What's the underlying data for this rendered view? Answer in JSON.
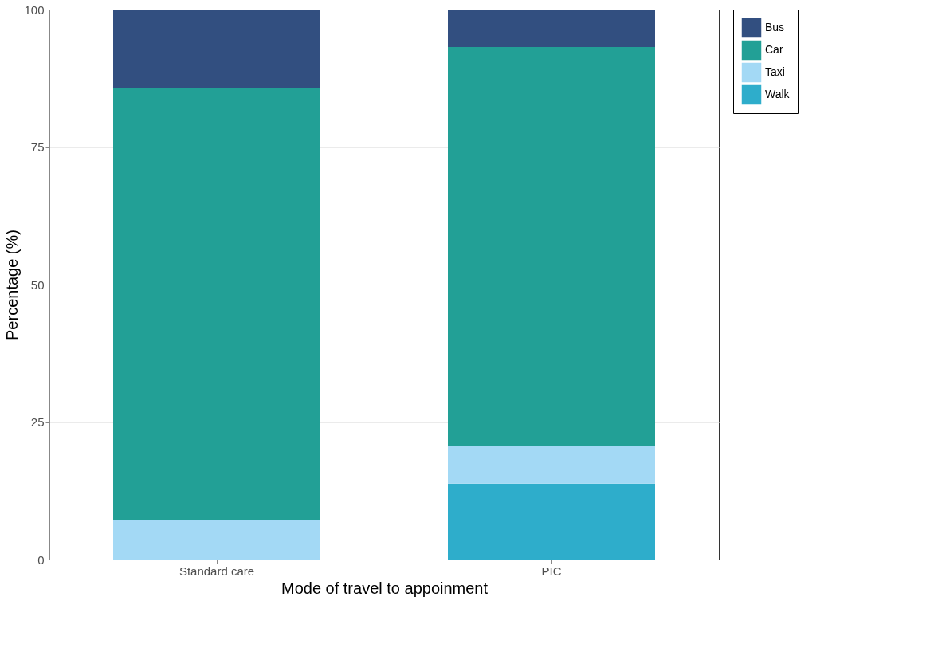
{
  "chart_data": {
    "type": "bar",
    "stacked": true,
    "xlabel": "Mode of travel to appoinment",
    "ylabel": "Percentage (%)",
    "categories": [
      "Standard care",
      "PIC"
    ],
    "series": [
      {
        "name": "Walk",
        "color": "#2eadcb",
        "values": [
          null,
          13.8
        ]
      },
      {
        "name": "Taxi",
        "color": "#a3d9f5",
        "values": [
          7.2,
          6.8
        ]
      },
      {
        "name": "Car",
        "color": "#22a096",
        "values": [
          78.6,
          72.6
        ]
      },
      {
        "name": "Bus",
        "color": "#324f80",
        "values": [
          14.2,
          6.8
        ]
      }
    ],
    "ylim": [
      0,
      100
    ],
    "yticks": [
      0,
      25,
      50,
      75,
      100
    ],
    "grid": "y",
    "legend": "right"
  }
}
